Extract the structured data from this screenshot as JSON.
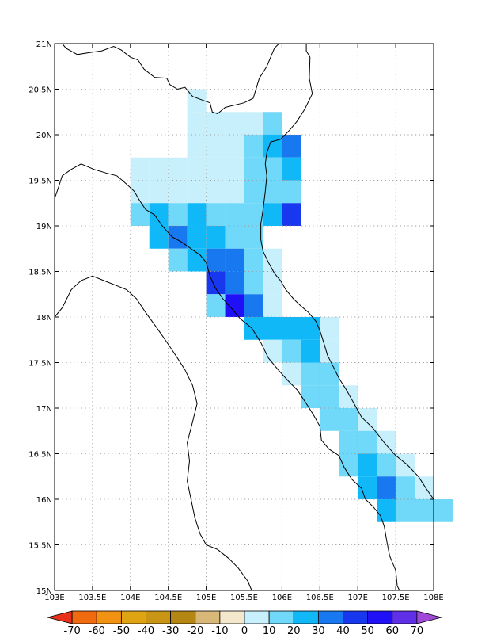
{
  "map": {
    "lon_range": [
      103.0,
      108.0
    ],
    "lat_range": [
      15.0,
      21.0
    ],
    "grid": "dotted",
    "lon_ticks": [
      {
        "v": 103.0,
        "label": "103E"
      },
      {
        "v": 103.5,
        "label": "103.5E"
      },
      {
        "v": 104.0,
        "label": "104E"
      },
      {
        "v": 104.5,
        "label": "104.5E"
      },
      {
        "v": 105.0,
        "label": "105E"
      },
      {
        "v": 105.5,
        "label": "105.5E"
      },
      {
        "v": 106.0,
        "label": "106E"
      },
      {
        "v": 106.5,
        "label": "106.5E"
      },
      {
        "v": 107.0,
        "label": "107E"
      },
      {
        "v": 107.5,
        "label": "107.5E"
      },
      {
        "v": 108.0,
        "label": "108E"
      }
    ],
    "lat_ticks": [
      {
        "v": 15.0,
        "label": "15N"
      },
      {
        "v": 15.5,
        "label": "15.5N"
      },
      {
        "v": 16.0,
        "label": "16N"
      },
      {
        "v": 16.5,
        "label": "16.5N"
      },
      {
        "v": 17.0,
        "label": "17N"
      },
      {
        "v": 17.5,
        "label": "17.5N"
      },
      {
        "v": 18.0,
        "label": "18N"
      },
      {
        "v": 18.5,
        "label": "18.5N"
      },
      {
        "v": 19.0,
        "label": "19N"
      },
      {
        "v": 19.5,
        "label": "19.5N"
      },
      {
        "v": 20.0,
        "label": "20N"
      },
      {
        "v": 20.5,
        "label": "20.5N"
      },
      {
        "v": 21.0,
        "label": "21N"
      }
    ]
  },
  "colorbar": {
    "labels": [
      "-70",
      "-60",
      "-50",
      "-40",
      "-30",
      "-20",
      "-10",
      "0",
      "10",
      "20",
      "30",
      "40",
      "50",
      "60",
      "70"
    ],
    "colors": [
      "#e8301a",
      "#f06a10",
      "#f29212",
      "#dea414",
      "#c89614",
      "#b48614",
      "#d8b878",
      "#f4e8cc",
      "#c8f0fc",
      "#70d8f8",
      "#10b8f8",
      "#1878f0",
      "#1838f0",
      "#2010f8",
      "#6030e8",
      "#a048d8"
    ]
  },
  "chart_data": {
    "type": "heatmap",
    "cell_size_deg": 0.25,
    "class_colors": {
      "0-10": "#c8f0fc",
      "10-20": "#70d8f8",
      "20-30": "#10b8f8",
      "30-40": "#1878f0",
      "40-50": "#1838f0",
      "50-60": "#2010f8"
    },
    "note_format": "rows of [lat_top, lon_left, class]",
    "cells": [
      [
        20.5,
        104.75,
        "0-10"
      ],
      [
        20.25,
        104.75,
        "0-10"
      ],
      [
        20.25,
        105.0,
        "0-10"
      ],
      [
        20.25,
        105.25,
        "0-10"
      ],
      [
        20.25,
        105.5,
        "0-10"
      ],
      [
        20.25,
        105.75,
        "10-20"
      ],
      [
        20.0,
        104.75,
        "0-10"
      ],
      [
        20.0,
        105.0,
        "0-10"
      ],
      [
        20.0,
        105.25,
        "0-10"
      ],
      [
        20.0,
        105.5,
        "10-20"
      ],
      [
        20.0,
        105.75,
        "20-30"
      ],
      [
        20.0,
        106.0,
        "30-40"
      ],
      [
        19.75,
        104.0,
        "0-10"
      ],
      [
        19.75,
        104.25,
        "0-10"
      ],
      [
        19.75,
        104.5,
        "0-10"
      ],
      [
        19.75,
        104.75,
        "0-10"
      ],
      [
        19.75,
        105.0,
        "0-10"
      ],
      [
        19.75,
        105.25,
        "0-10"
      ],
      [
        19.75,
        105.5,
        "10-20"
      ],
      [
        19.75,
        105.75,
        "10-20"
      ],
      [
        19.75,
        106.0,
        "20-30"
      ],
      [
        19.5,
        104.0,
        "0-10"
      ],
      [
        19.5,
        104.25,
        "0-10"
      ],
      [
        19.5,
        104.5,
        "0-10"
      ],
      [
        19.5,
        104.75,
        "0-10"
      ],
      [
        19.5,
        105.0,
        "0-10"
      ],
      [
        19.5,
        105.25,
        "0-10"
      ],
      [
        19.5,
        105.5,
        "10-20"
      ],
      [
        19.5,
        105.75,
        "10-20"
      ],
      [
        19.5,
        106.0,
        "10-20"
      ],
      [
        19.25,
        104.0,
        "10-20"
      ],
      [
        19.25,
        104.25,
        "20-30"
      ],
      [
        19.25,
        104.5,
        "10-20"
      ],
      [
        19.25,
        104.75,
        "20-30"
      ],
      [
        19.25,
        105.0,
        "10-20"
      ],
      [
        19.25,
        105.25,
        "10-20"
      ],
      [
        19.25,
        105.5,
        "10-20"
      ],
      [
        19.25,
        105.75,
        "20-30"
      ],
      [
        19.25,
        106.0,
        "40-50"
      ],
      [
        19.0,
        104.25,
        "20-30"
      ],
      [
        19.0,
        104.5,
        "30-40"
      ],
      [
        19.0,
        104.75,
        "20-30"
      ],
      [
        19.0,
        105.0,
        "20-30"
      ],
      [
        19.0,
        105.25,
        "10-20"
      ],
      [
        19.0,
        105.5,
        "10-20"
      ],
      [
        18.75,
        104.5,
        "10-20"
      ],
      [
        18.75,
        104.75,
        "20-30"
      ],
      [
        18.75,
        105.0,
        "30-40"
      ],
      [
        18.75,
        105.25,
        "30-40"
      ],
      [
        18.75,
        105.5,
        "10-20"
      ],
      [
        18.75,
        105.75,
        "0-10"
      ],
      [
        18.5,
        105.0,
        "40-50"
      ],
      [
        18.5,
        105.25,
        "30-40"
      ],
      [
        18.5,
        105.5,
        "10-20"
      ],
      [
        18.5,
        105.75,
        "0-10"
      ],
      [
        18.25,
        105.0,
        "10-20"
      ],
      [
        18.25,
        105.25,
        "50-60"
      ],
      [
        18.25,
        105.5,
        "30-40"
      ],
      [
        18.25,
        105.75,
        "0-10"
      ],
      [
        18.0,
        105.5,
        "20-30"
      ],
      [
        18.0,
        105.75,
        "20-30"
      ],
      [
        18.0,
        106.0,
        "20-30"
      ],
      [
        18.0,
        106.25,
        "20-30"
      ],
      [
        18.0,
        106.5,
        "0-10"
      ],
      [
        17.75,
        105.75,
        "0-10"
      ],
      [
        17.75,
        106.0,
        "10-20"
      ],
      [
        17.75,
        106.25,
        "20-30"
      ],
      [
        17.75,
        106.5,
        "0-10"
      ],
      [
        17.5,
        106.0,
        "0-10"
      ],
      [
        17.5,
        106.25,
        "10-20"
      ],
      [
        17.5,
        106.5,
        "10-20"
      ],
      [
        17.25,
        106.25,
        "10-20"
      ],
      [
        17.25,
        106.5,
        "10-20"
      ],
      [
        17.25,
        106.75,
        "0-10"
      ],
      [
        17.0,
        106.5,
        "10-20"
      ],
      [
        17.0,
        106.75,
        "10-20"
      ],
      [
        17.0,
        107.0,
        "0-10"
      ],
      [
        16.75,
        106.75,
        "10-20"
      ],
      [
        16.75,
        107.0,
        "10-20"
      ],
      [
        16.75,
        107.25,
        "0-10"
      ],
      [
        16.5,
        106.75,
        "10-20"
      ],
      [
        16.5,
        107.0,
        "20-30"
      ],
      [
        16.5,
        107.25,
        "10-20"
      ],
      [
        16.5,
        107.5,
        "0-10"
      ],
      [
        16.25,
        107.0,
        "20-30"
      ],
      [
        16.25,
        107.25,
        "30-40"
      ],
      [
        16.25,
        107.5,
        "10-20"
      ],
      [
        16.25,
        107.75,
        "0-10"
      ],
      [
        16.0,
        107.25,
        "20-30"
      ],
      [
        16.0,
        107.5,
        "10-20"
      ],
      [
        16.0,
        107.75,
        "10-20"
      ],
      [
        16.0,
        108.0,
        "10-20"
      ]
    ]
  },
  "coastline": {
    "coast_main": [
      [
        103.1,
        21.0
      ],
      [
        103.15,
        20.95
      ],
      [
        103.3,
        20.88
      ],
      [
        103.45,
        20.9
      ],
      [
        103.62,
        20.92
      ],
      [
        103.78,
        20.97
      ],
      [
        103.88,
        20.93
      ],
      [
        104.0,
        20.85
      ],
      [
        104.1,
        20.82
      ],
      [
        104.18,
        20.72
      ],
      [
        104.32,
        20.63
      ],
      [
        104.48,
        20.62
      ],
      [
        104.52,
        20.55
      ],
      [
        104.62,
        20.5
      ],
      [
        104.72,
        20.52
      ],
      [
        104.82,
        20.42
      ],
      [
        104.95,
        20.38
      ],
      [
        105.05,
        20.35
      ],
      [
        105.08,
        20.25
      ],
      [
        105.15,
        20.23
      ],
      [
        105.25,
        20.3
      ],
      [
        105.35,
        20.32
      ],
      [
        105.5,
        20.35
      ],
      [
        105.62,
        20.4
      ],
      [
        105.7,
        20.62
      ],
      [
        105.8,
        20.75
      ],
      [
        105.9,
        20.95
      ],
      [
        105.96,
        21.0
      ]
    ],
    "coast_north_east": [
      [
        106.32,
        21.0
      ],
      [
        106.32,
        20.92
      ],
      [
        106.37,
        20.85
      ],
      [
        106.36,
        20.62
      ],
      [
        106.4,
        20.45
      ],
      [
        106.3,
        20.28
      ],
      [
        106.2,
        20.15
      ],
      [
        106.1,
        20.05
      ],
      [
        105.98,
        19.95
      ],
      [
        105.85,
        19.92
      ],
      [
        105.8,
        19.8
      ],
      [
        105.78,
        19.68
      ],
      [
        105.8,
        19.55
      ],
      [
        105.78,
        19.38
      ],
      [
        105.75,
        19.18
      ],
      [
        105.72,
        19.02
      ],
      [
        105.72,
        18.85
      ],
      [
        105.75,
        18.72
      ],
      [
        105.82,
        18.6
      ],
      [
        105.9,
        18.48
      ],
      [
        105.98,
        18.4
      ],
      [
        106.05,
        18.3
      ],
      [
        106.15,
        18.2
      ],
      [
        106.25,
        18.12
      ],
      [
        106.35,
        18.05
      ],
      [
        106.45,
        17.95
      ],
      [
        106.5,
        17.85
      ],
      [
        106.55,
        17.72
      ],
      [
        106.6,
        17.58
      ],
      [
        106.68,
        17.45
      ],
      [
        106.75,
        17.33
      ],
      [
        106.85,
        17.2
      ],
      [
        106.95,
        17.05
      ],
      [
        107.05,
        16.9
      ],
      [
        107.2,
        16.78
      ],
      [
        107.35,
        16.62
      ],
      [
        107.5,
        16.48
      ],
      [
        107.65,
        16.38
      ],
      [
        107.8,
        16.25
      ],
      [
        107.9,
        16.12
      ],
      [
        108.0,
        16.0
      ]
    ],
    "border_laos": [
      [
        103.0,
        19.3
      ],
      [
        103.05,
        19.42
      ],
      [
        103.1,
        19.55
      ],
      [
        103.22,
        19.62
      ],
      [
        103.35,
        19.68
      ],
      [
        103.52,
        19.62
      ],
      [
        103.68,
        19.58
      ],
      [
        103.82,
        19.55
      ],
      [
        103.92,
        19.48
      ],
      [
        104.05,
        19.38
      ],
      [
        104.12,
        19.28
      ],
      [
        104.2,
        19.18
      ],
      [
        104.32,
        19.12
      ],
      [
        104.42,
        19.0
      ],
      [
        104.55,
        18.88
      ],
      [
        104.68,
        18.82
      ],
      [
        104.8,
        18.75
      ],
      [
        104.92,
        18.68
      ],
      [
        105.0,
        18.6
      ],
      [
        105.05,
        18.45
      ],
      [
        105.12,
        18.32
      ],
      [
        105.22,
        18.2
      ],
      [
        105.35,
        18.08
      ],
      [
        105.45,
        17.98
      ],
      [
        105.6,
        17.88
      ],
      [
        105.72,
        17.72
      ],
      [
        105.82,
        17.55
      ],
      [
        105.95,
        17.42
      ],
      [
        106.08,
        17.3
      ],
      [
        106.2,
        17.2
      ],
      [
        106.32,
        17.05
      ],
      [
        106.42,
        16.92
      ],
      [
        106.5,
        16.8
      ],
      [
        106.52,
        16.65
      ],
      [
        106.62,
        16.55
      ],
      [
        106.75,
        16.48
      ],
      [
        106.82,
        16.35
      ],
      [
        106.92,
        16.22
      ],
      [
        107.05,
        16.12
      ],
      [
        107.1,
        16.0
      ],
      [
        107.2,
        15.92
      ],
      [
        107.3,
        15.82
      ],
      [
        107.35,
        15.7
      ],
      [
        107.38,
        15.55
      ],
      [
        107.42,
        15.38
      ],
      [
        107.5,
        15.22
      ],
      [
        107.52,
        15.05
      ],
      [
        107.55,
        15.0
      ]
    ],
    "border_laos_th": [
      [
        103.0,
        18.0
      ],
      [
        103.1,
        18.1
      ],
      [
        103.22,
        18.3
      ],
      [
        103.35,
        18.4
      ],
      [
        103.5,
        18.45
      ],
      [
        103.65,
        18.4
      ],
      [
        103.8,
        18.35
      ],
      [
        103.95,
        18.3
      ],
      [
        104.08,
        18.2
      ],
      [
        104.2,
        18.05
      ],
      [
        104.35,
        17.88
      ],
      [
        104.5,
        17.7
      ],
      [
        104.62,
        17.55
      ],
      [
        104.72,
        17.42
      ],
      [
        104.82,
        17.25
      ],
      [
        104.88,
        17.05
      ],
      [
        104.82,
        16.85
      ],
      [
        104.75,
        16.62
      ],
      [
        104.78,
        16.42
      ],
      [
        104.75,
        16.2
      ],
      [
        104.8,
        16.0
      ],
      [
        104.85,
        15.8
      ],
      [
        104.92,
        15.62
      ],
      [
        105.0,
        15.5
      ],
      [
        105.15,
        15.45
      ],
      [
        105.3,
        15.35
      ],
      [
        105.42,
        15.25
      ],
      [
        105.55,
        15.1
      ],
      [
        105.6,
        15.0
      ]
    ]
  }
}
